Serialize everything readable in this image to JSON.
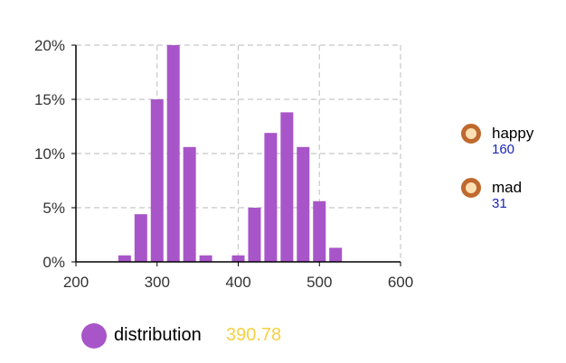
{
  "chart_data": {
    "type": "bar",
    "x": [
      260,
      280,
      300,
      320,
      340,
      360,
      380,
      400,
      420,
      440,
      460,
      480,
      500,
      520
    ],
    "values": [
      0.6,
      4.4,
      15.0,
      20.0,
      10.6,
      0.6,
      0,
      0.6,
      5.0,
      11.9,
      13.8,
      10.6,
      5.6,
      1.3
    ],
    "xlim": [
      200,
      600
    ],
    "ylim": [
      0,
      20
    ],
    "xticks": [
      "200",
      "300",
      "400",
      "500",
      "600"
    ],
    "yticks": [
      "0%",
      "5%",
      "10%",
      "15%",
      "20%"
    ],
    "bar_color": "#a855c9",
    "grid": true,
    "title": "",
    "xlabel": "",
    "ylabel": ""
  },
  "side_legend": [
    {
      "name": "happy",
      "value": "160"
    },
    {
      "name": "mad",
      "value": "31"
    }
  ],
  "bottom_legend": {
    "label": "distribution",
    "value": "390.78",
    "swatch_color": "#a855c9",
    "value_color": "#f5d142"
  },
  "colors": {
    "ring_border": "#c0692e",
    "ring_fill": "#fce0b4",
    "side_value": "#1a25b8"
  }
}
